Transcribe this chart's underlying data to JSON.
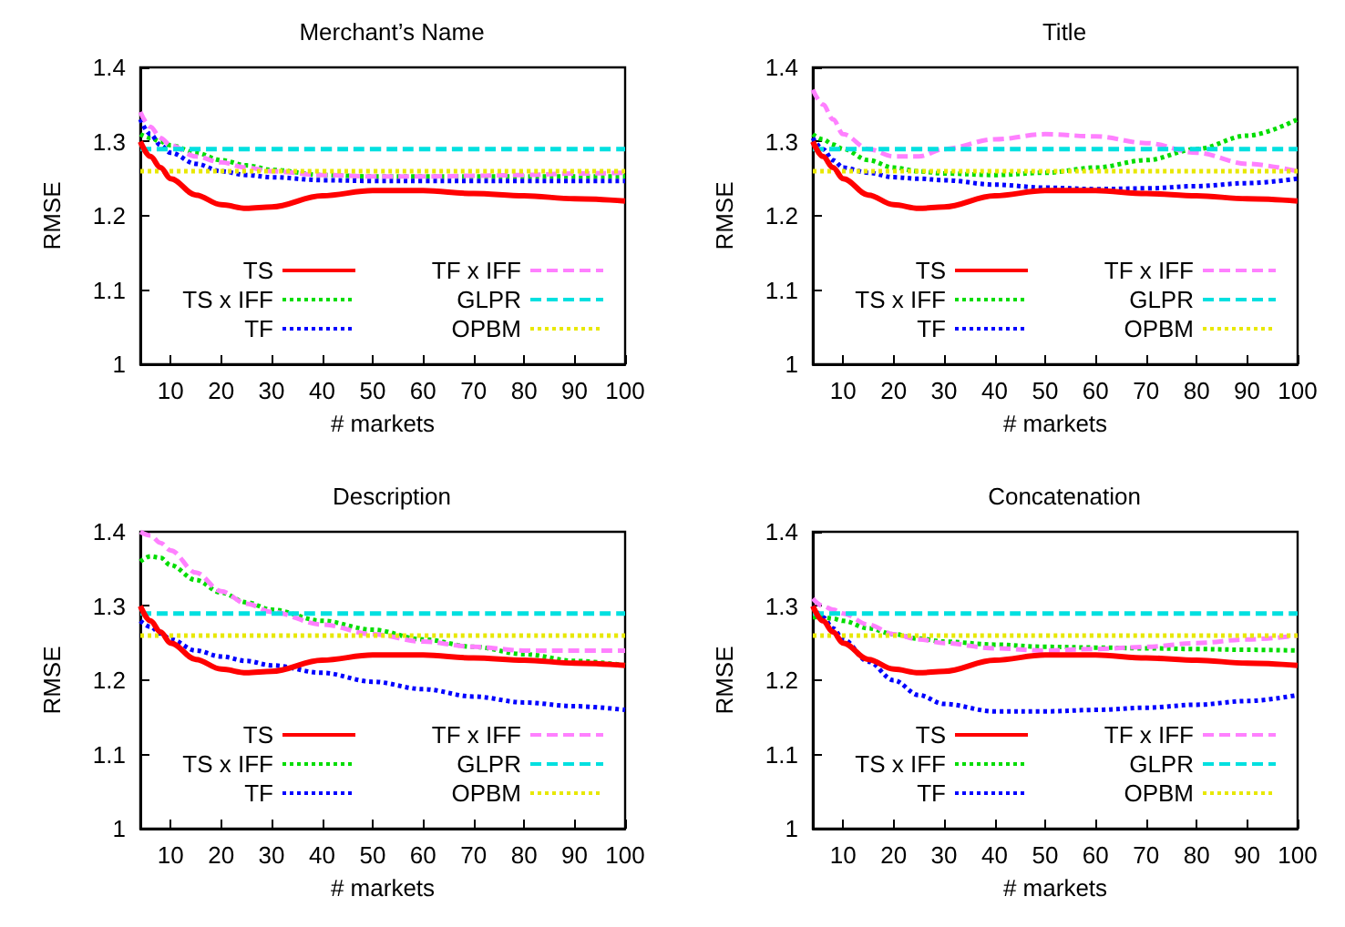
{
  "chart_data": [
    {
      "type": "line",
      "title": "Merchant’s Name",
      "xlabel": "# markets",
      "ylabel": "RMSE",
      "xlim": [
        4,
        100
      ],
      "xticks": [
        10,
        20,
        30,
        40,
        50,
        60,
        70,
        80,
        90,
        100
      ],
      "ylim": [
        1,
        1.4
      ],
      "yticks": [
        1,
        1.1,
        1.2,
        1.3,
        1.4
      ],
      "grid": false,
      "legend": "bottom",
      "marker": "none",
      "x": [
        4,
        6,
        8,
        10,
        15,
        20,
        25,
        30,
        40,
        50,
        60,
        70,
        80,
        90,
        100
      ],
      "series": [
        {
          "name": "TS",
          "color": "#ff0000",
          "line_style": "solid",
          "values": [
            1.3,
            1.28,
            1.265,
            1.25,
            1.228,
            1.215,
            1.21,
            1.212,
            1.227,
            1.234,
            1.234,
            1.23,
            1.227,
            1.223,
            1.22
          ]
        },
        {
          "name": "TS x IFF",
          "color": "#00dd00",
          "line_style": "dotted",
          "values": [
            1.31,
            1.305,
            1.3,
            1.295,
            1.285,
            1.275,
            1.268,
            1.262,
            1.255,
            1.253,
            1.253,
            1.253,
            1.253,
            1.253,
            1.253
          ]
        },
        {
          "name": "TF",
          "color": "#0000ff",
          "line_style": "dotted",
          "values": [
            1.33,
            1.31,
            1.295,
            1.285,
            1.27,
            1.26,
            1.255,
            1.252,
            1.248,
            1.247,
            1.247,
            1.247,
            1.247,
            1.247,
            1.247
          ]
        },
        {
          "name": "TF x IFF",
          "color": "#ff80ff",
          "line_style": "dashed",
          "values": [
            1.34,
            1.32,
            1.305,
            1.295,
            1.28,
            1.272,
            1.265,
            1.26,
            1.255,
            1.253,
            1.253,
            1.254,
            1.255,
            1.257,
            1.258
          ]
        },
        {
          "name": "GLPR",
          "color": "#00e0e0",
          "line_style": "dashed",
          "values": [
            1.29,
            1.29,
            1.29,
            1.29,
            1.29,
            1.29,
            1.29,
            1.29,
            1.29,
            1.29,
            1.29,
            1.29,
            1.29,
            1.29,
            1.29
          ]
        },
        {
          "name": "OPBM",
          "color": "#e8e800",
          "line_style": "dotted",
          "values": [
            1.26,
            1.26,
            1.26,
            1.26,
            1.26,
            1.26,
            1.26,
            1.26,
            1.26,
            1.26,
            1.26,
            1.26,
            1.26,
            1.26,
            1.26
          ]
        }
      ]
    },
    {
      "type": "line",
      "title": "Title",
      "xlabel": "# markets",
      "ylabel": "RMSE",
      "xlim": [
        4,
        100
      ],
      "xticks": [
        10,
        20,
        30,
        40,
        50,
        60,
        70,
        80,
        90,
        100
      ],
      "ylim": [
        1,
        1.4
      ],
      "yticks": [
        1,
        1.1,
        1.2,
        1.3,
        1.4
      ],
      "grid": false,
      "legend": "bottom",
      "marker": "none",
      "x": [
        4,
        6,
        8,
        10,
        15,
        20,
        25,
        30,
        40,
        50,
        60,
        70,
        80,
        90,
        100
      ],
      "series": [
        {
          "name": "TS",
          "color": "#ff0000",
          "line_style": "solid",
          "values": [
            1.3,
            1.28,
            1.265,
            1.25,
            1.228,
            1.215,
            1.21,
            1.212,
            1.227,
            1.234,
            1.234,
            1.23,
            1.227,
            1.223,
            1.22
          ]
        },
        {
          "name": "TS x IFF",
          "color": "#00dd00",
          "line_style": "dotted",
          "values": [
            1.31,
            1.303,
            1.296,
            1.29,
            1.275,
            1.265,
            1.26,
            1.257,
            1.255,
            1.258,
            1.265,
            1.275,
            1.29,
            1.308,
            1.33
          ]
        },
        {
          "name": "TF",
          "color": "#0000ff",
          "line_style": "dotted",
          "values": [
            1.305,
            1.29,
            1.275,
            1.265,
            1.258,
            1.252,
            1.25,
            1.248,
            1.242,
            1.238,
            1.236,
            1.237,
            1.24,
            1.244,
            1.25
          ]
        },
        {
          "name": "TF x IFF",
          "color": "#ff80ff",
          "line_style": "dashed",
          "values": [
            1.37,
            1.35,
            1.33,
            1.31,
            1.29,
            1.28,
            1.28,
            1.29,
            1.303,
            1.31,
            1.307,
            1.298,
            1.285,
            1.27,
            1.26
          ]
        },
        {
          "name": "GLPR",
          "color": "#00e0e0",
          "line_style": "dashed",
          "values": [
            1.29,
            1.29,
            1.29,
            1.29,
            1.29,
            1.29,
            1.29,
            1.29,
            1.29,
            1.29,
            1.29,
            1.29,
            1.29,
            1.29,
            1.29
          ]
        },
        {
          "name": "OPBM",
          "color": "#e8e800",
          "line_style": "dotted",
          "values": [
            1.26,
            1.26,
            1.26,
            1.26,
            1.26,
            1.26,
            1.26,
            1.26,
            1.26,
            1.26,
            1.26,
            1.26,
            1.26,
            1.26,
            1.26
          ]
        }
      ]
    },
    {
      "type": "line",
      "title": "Description",
      "xlabel": "# markets",
      "ylabel": "RMSE",
      "xlim": [
        4,
        100
      ],
      "xticks": [
        10,
        20,
        30,
        40,
        50,
        60,
        70,
        80,
        90,
        100
      ],
      "ylim": [
        1,
        1.4
      ],
      "yticks": [
        1,
        1.1,
        1.2,
        1.3,
        1.4
      ],
      "grid": false,
      "legend": "bottom",
      "marker": "none",
      "x": [
        4,
        6,
        8,
        10,
        15,
        20,
        25,
        30,
        40,
        50,
        60,
        70,
        80,
        90,
        100
      ],
      "series": [
        {
          "name": "TS",
          "color": "#ff0000",
          "line_style": "solid",
          "values": [
            1.3,
            1.28,
            1.265,
            1.25,
            1.228,
            1.215,
            1.21,
            1.212,
            1.227,
            1.234,
            1.234,
            1.23,
            1.227,
            1.223,
            1.22
          ]
        },
        {
          "name": "TS x IFF",
          "color": "#00dd00",
          "line_style": "dotted",
          "values": [
            1.36,
            1.367,
            1.365,
            1.355,
            1.335,
            1.318,
            1.305,
            1.295,
            1.28,
            1.268,
            1.255,
            1.245,
            1.235,
            1.226,
            1.22
          ]
        },
        {
          "name": "TF",
          "color": "#0000ff",
          "line_style": "dotted",
          "values": [
            1.28,
            1.272,
            1.263,
            1.255,
            1.24,
            1.232,
            1.226,
            1.22,
            1.21,
            1.198,
            1.188,
            1.178,
            1.17,
            1.165,
            1.16
          ]
        },
        {
          "name": "TF x IFF",
          "color": "#ff80ff",
          "line_style": "dashed",
          "values": [
            1.4,
            1.395,
            1.385,
            1.375,
            1.345,
            1.32,
            1.303,
            1.292,
            1.275,
            1.262,
            1.252,
            1.245,
            1.24,
            1.24,
            1.24
          ]
        },
        {
          "name": "GLPR",
          "color": "#00e0e0",
          "line_style": "dashed",
          "values": [
            1.29,
            1.29,
            1.29,
            1.29,
            1.29,
            1.29,
            1.29,
            1.29,
            1.29,
            1.29,
            1.29,
            1.29,
            1.29,
            1.29,
            1.29
          ]
        },
        {
          "name": "OPBM",
          "color": "#e8e800",
          "line_style": "dotted",
          "values": [
            1.26,
            1.26,
            1.26,
            1.26,
            1.26,
            1.26,
            1.26,
            1.26,
            1.26,
            1.26,
            1.26,
            1.26,
            1.26,
            1.26,
            1.26
          ]
        }
      ]
    },
    {
      "type": "line",
      "title": "Concatenation",
      "xlabel": "# markets",
      "ylabel": "RMSE",
      "xlim": [
        4,
        100
      ],
      "xticks": [
        10,
        20,
        30,
        40,
        50,
        60,
        70,
        80,
        90,
        100
      ],
      "ylim": [
        1,
        1.4
      ],
      "yticks": [
        1,
        1.1,
        1.2,
        1.3,
        1.4
      ],
      "grid": false,
      "legend": "bottom",
      "marker": "none",
      "x": [
        4,
        6,
        8,
        10,
        15,
        20,
        25,
        30,
        40,
        50,
        60,
        70,
        80,
        90,
        100
      ],
      "series": [
        {
          "name": "TS",
          "color": "#ff0000",
          "line_style": "solid",
          "values": [
            1.3,
            1.28,
            1.265,
            1.25,
            1.228,
            1.215,
            1.21,
            1.212,
            1.227,
            1.234,
            1.234,
            1.23,
            1.227,
            1.223,
            1.22
          ]
        },
        {
          "name": "TS x IFF",
          "color": "#00dd00",
          "line_style": "dotted",
          "values": [
            1.285,
            1.285,
            1.283,
            1.28,
            1.27,
            1.262,
            1.256,
            1.252,
            1.248,
            1.245,
            1.244,
            1.243,
            1.242,
            1.241,
            1.24
          ]
        },
        {
          "name": "TF",
          "color": "#0000ff",
          "line_style": "dotted",
          "values": [
            1.3,
            1.285,
            1.27,
            1.255,
            1.225,
            1.2,
            1.18,
            1.168,
            1.158,
            1.158,
            1.16,
            1.163,
            1.167,
            1.172,
            1.18
          ]
        },
        {
          "name": "TF x IFF",
          "color": "#ff80ff",
          "line_style": "dashed",
          "values": [
            1.31,
            1.3,
            1.295,
            1.29,
            1.275,
            1.262,
            1.255,
            1.25,
            1.243,
            1.24,
            1.242,
            1.245,
            1.25,
            1.255,
            1.26
          ]
        },
        {
          "name": "GLPR",
          "color": "#00e0e0",
          "line_style": "dashed",
          "values": [
            1.29,
            1.29,
            1.29,
            1.29,
            1.29,
            1.29,
            1.29,
            1.29,
            1.29,
            1.29,
            1.29,
            1.29,
            1.29,
            1.29,
            1.29
          ]
        },
        {
          "name": "OPBM",
          "color": "#e8e800",
          "line_style": "dotted",
          "values": [
            1.26,
            1.26,
            1.26,
            1.26,
            1.26,
            1.26,
            1.26,
            1.26,
            1.26,
            1.26,
            1.26,
            1.26,
            1.26,
            1.26,
            1.26
          ]
        }
      ]
    }
  ]
}
